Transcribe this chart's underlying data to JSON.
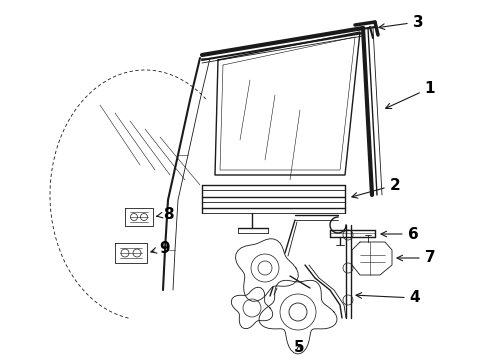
{
  "bg_color": "#ffffff",
  "line_color": "#1a1a1a",
  "label_color": "#000000",
  "figsize": [
    4.9,
    3.6
  ],
  "dpi": 100,
  "label_fontsize": 11,
  "lw": 1.0,
  "tlw": 0.6
}
